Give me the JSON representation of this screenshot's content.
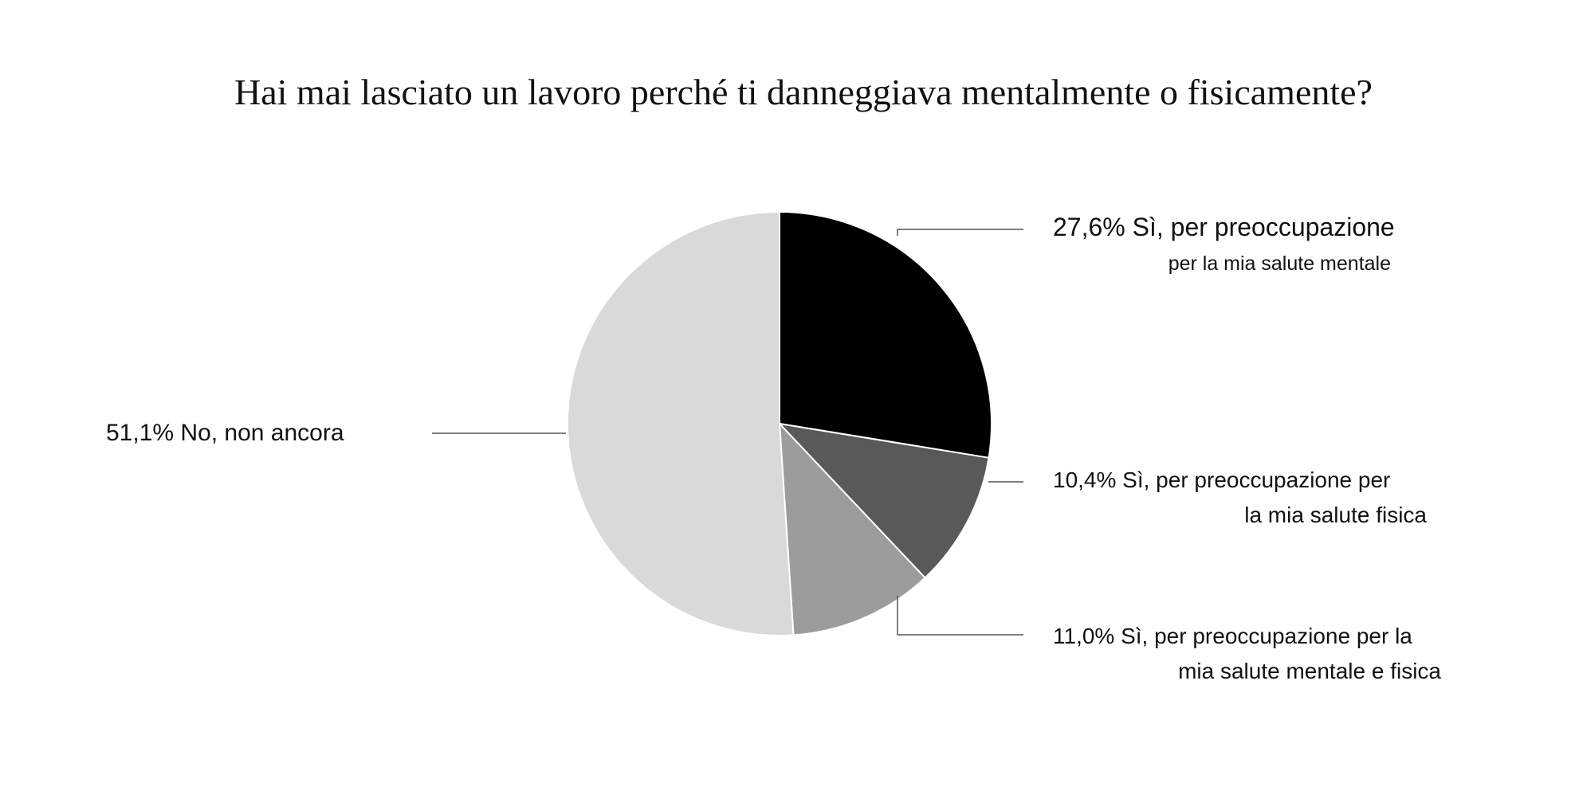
{
  "chart_data": {
    "type": "pie",
    "title": "Hai mai lasciato un lavoro perché ti danneggiava mentalmente o fisicamente?",
    "slices": [
      {
        "value": 27.6,
        "color": "#000000",
        "label": [
          "27,6% Sì, per preoccupazione",
          "per la mia salute mentale"
        ]
      },
      {
        "value": 10.4,
        "color": "#595959",
        "label": [
          "10,4% Sì, per preoccupazione per",
          "la mia salute fisica"
        ]
      },
      {
        "value": 11.0,
        "color": "#9c9c9c",
        "label": [
          "11,0% Sì, per preoccupazione per la",
          "mia salute mentale e fisica"
        ]
      },
      {
        "value": 51.1,
        "color": "#d9d9d9",
        "label": [
          "51,1% No, non ancora"
        ]
      }
    ],
    "legend": "none"
  }
}
